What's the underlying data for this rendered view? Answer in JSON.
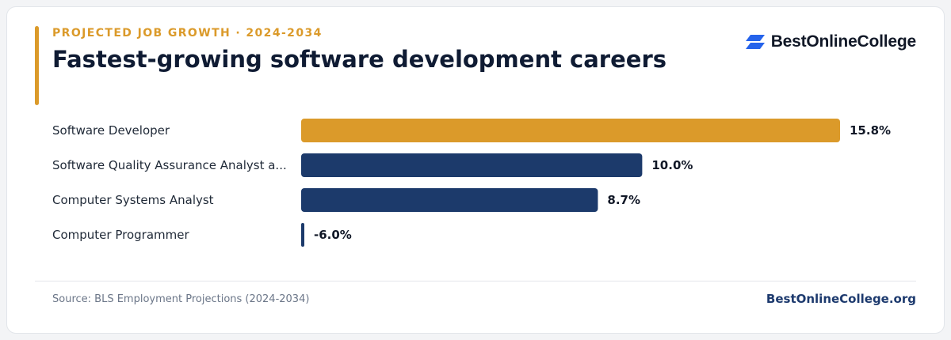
{
  "header": {
    "eyebrow": "PROJECTED JOB GROWTH · 2024-2034",
    "title": "Fastest-growing software development careers"
  },
  "brand": {
    "logo_text": "BestOnlineCollege",
    "logo_icon": "stacked-chevron-logo-icon",
    "logo_color": "#2563eb"
  },
  "colors": {
    "highlight": "#db9a2a",
    "default_bar": "#1c3a6b",
    "label_text": "#1f2937"
  },
  "chart_data": {
    "type": "bar",
    "orientation": "horizontal",
    "categories": [
      "Software Developer",
      "Software Quality Assurance Analyst a...",
      "Computer Systems Analyst",
      "Computer Programmer"
    ],
    "values": [
      15.8,
      10.0,
      8.7,
      -6.0
    ],
    "value_labels": [
      "15.8%",
      "10.0%",
      "8.7%",
      "-6.0%"
    ],
    "highlight_index": 0,
    "xlim": [
      0,
      15.8
    ],
    "grid": false,
    "legend": "none"
  },
  "footer": {
    "source": "Source: BLS Employment Projections (2024-2034)",
    "site": "BestOnlineCollege.org"
  }
}
